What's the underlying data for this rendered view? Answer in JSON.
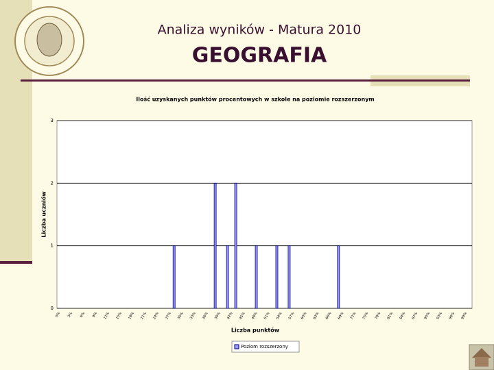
{
  "header": {
    "subtitle": "Analiza wyników  - Matura 2010",
    "title": "GEOGRAFIA"
  },
  "chart_data": {
    "type": "bar",
    "title": "Ilość uzyskanych punktów procentowych w szkole na poziomie rozszerzonym",
    "y_label": "Liczba uczniów",
    "x_label": "Liczba punktów",
    "categories": [
      "0%",
      null,
      null,
      "3%",
      null,
      null,
      "6%",
      null,
      null,
      "9%",
      null,
      null,
      "12%",
      null,
      null,
      "15%",
      null,
      null,
      "18%",
      null,
      null,
      "21%",
      null,
      null,
      "24%",
      null,
      null,
      "27%",
      null,
      null,
      "30%",
      null,
      null,
      "33%",
      null,
      null,
      "36%",
      null,
      null,
      "39%",
      null,
      null,
      "42%",
      null,
      null,
      "45%",
      null,
      null,
      "48%",
      null,
      null,
      "51%",
      null,
      null,
      "54%",
      null,
      null,
      "57%",
      null,
      null,
      "60%",
      null,
      null,
      "63%",
      null,
      null,
      "66%",
      null,
      null,
      "69%",
      null,
      null,
      "72%",
      null,
      null,
      "75%",
      null,
      null,
      "78%",
      null,
      null,
      "81%",
      null,
      null,
      "84%",
      null,
      null,
      "87%",
      null,
      null,
      "90%",
      null,
      null,
      "93%",
      null,
      null,
      "96%",
      null,
      null,
      "99%",
      null
    ],
    "series": [
      {
        "name": "Poziom rozszerzony",
        "color": "#9999ff",
        "values": [
          0,
          0,
          0,
          0,
          0,
          0,
          0,
          0,
          0,
          0,
          0,
          0,
          0,
          0,
          0,
          0,
          0,
          0,
          0,
          0,
          0,
          0,
          0,
          0,
          0,
          0,
          0,
          0,
          1,
          0,
          0,
          0,
          0,
          0,
          0,
          0,
          0,
          0,
          2,
          0,
          0,
          1,
          0,
          2,
          0,
          0,
          0,
          0,
          1,
          0,
          0,
          0,
          0,
          1,
          0,
          0,
          1,
          0,
          0,
          0,
          0,
          0,
          0,
          0,
          0,
          0,
          0,
          0,
          1,
          0,
          0,
          0,
          0,
          0,
          0,
          0,
          0,
          0,
          0,
          0,
          0,
          0,
          0,
          0,
          0,
          0,
          0,
          0,
          0,
          0,
          0,
          0,
          0,
          0,
          0,
          0,
          0,
          0,
          0,
          0,
          0
        ]
      }
    ],
    "ylim": [
      0,
      3
    ],
    "yticks": [
      0,
      1,
      2,
      3
    ],
    "grid": true
  }
}
